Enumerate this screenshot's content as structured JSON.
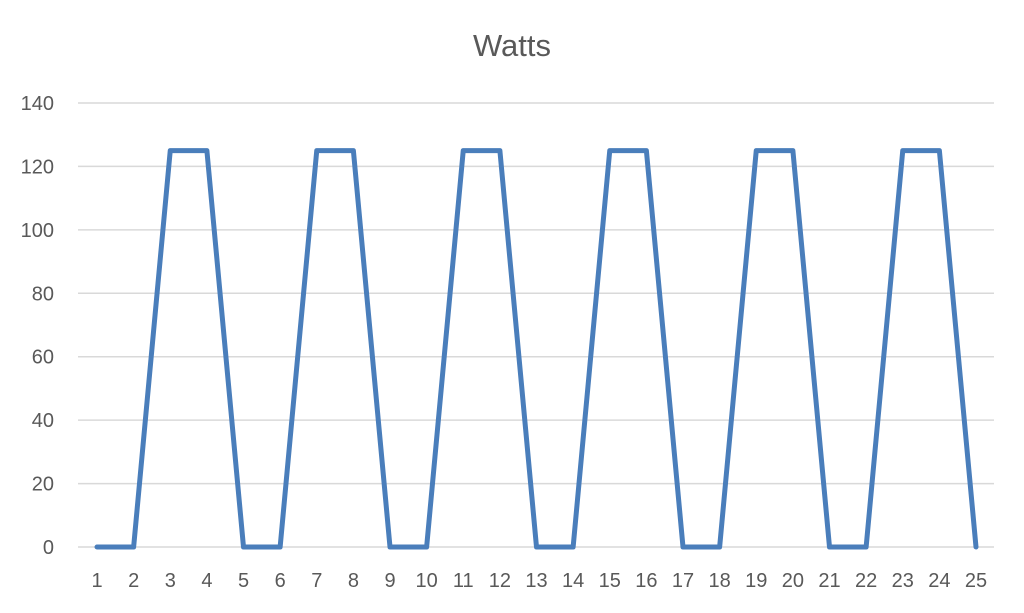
{
  "chart_data": {
    "type": "line",
    "title": "Watts",
    "xlabel": "",
    "ylabel": "",
    "categories": [
      "1",
      "2",
      "3",
      "4",
      "5",
      "6",
      "7",
      "8",
      "9",
      "10",
      "11",
      "12",
      "13",
      "14",
      "15",
      "16",
      "17",
      "18",
      "19",
      "20",
      "21",
      "22",
      "23",
      "24",
      "25"
    ],
    "series": [
      {
        "color": "#4a7ebb",
        "values": [
          0,
          0,
          125,
          125,
          0,
          0,
          125,
          125,
          0,
          0,
          125,
          125,
          0,
          0,
          125,
          125,
          0,
          0,
          125,
          125,
          0,
          0,
          125,
          125,
          0
        ]
      }
    ],
    "ylim": [
      0,
      140
    ],
    "yticks": [
      0,
      20,
      40,
      60,
      80,
      100,
      120,
      140
    ],
    "grid": true,
    "legend": "none"
  }
}
